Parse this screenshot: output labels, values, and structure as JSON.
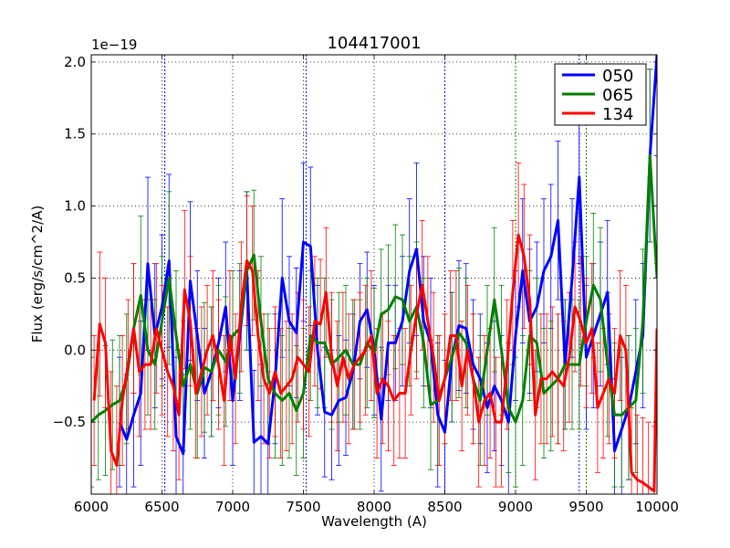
{
  "chart_data": {
    "type": "line",
    "title": "104417001",
    "xlabel": "Wavelength (A)",
    "ylabel": "Flux (erg/s/cm^2/A)",
    "offset_text": "1e−19",
    "xlim": [
      6000,
      10000
    ],
    "ylim": [
      -1.0,
      2.05
    ],
    "grid": true,
    "legend_position": "top-right",
    "x_ticks": [
      6000,
      6500,
      7000,
      7500,
      8000,
      8500,
      9000,
      9500,
      10000
    ],
    "x_tick_labels": [
      "6000",
      "6500",
      "7000",
      "7500",
      "8000",
      "8500",
      "9000",
      "9500",
      "10000"
    ],
    "y_ticks": [
      -0.5,
      0.0,
      0.5,
      1.0,
      1.5,
      2.0
    ],
    "y_tick_labels": [
      "−0.5",
      "0.0",
      "0.5",
      "1.0",
      "1.5",
      "2.0"
    ],
    "vertical_lines": [
      {
        "x": 6520,
        "color": "#0000ff"
      },
      {
        "x": 7520,
        "color": "#0000ff"
      },
      {
        "x": 8500,
        "color": "#0000ff"
      },
      {
        "x": 9000,
        "color": "#008000"
      },
      {
        "x": 9450,
        "color": "#0000ff"
      },
      {
        "x": 9500,
        "color": "#008000"
      }
    ],
    "series": [
      {
        "name": "050",
        "color": "#0000ff",
        "x": [
          6200,
          6250,
          6300,
          6350,
          6400,
          6450,
          6500,
          6550,
          6600,
          6650,
          6700,
          6750,
          6800,
          6850,
          6900,
          6950,
          7000,
          7050,
          7100,
          7150,
          7200,
          7250,
          7300,
          7350,
          7400,
          7450,
          7500,
          7550,
          7600,
          7650,
          7700,
          7750,
          7800,
          7850,
          7900,
          7950,
          8000,
          8050,
          8100,
          8150,
          8200,
          8250,
          8300,
          8350,
          8400,
          8450,
          8500,
          8550,
          8600,
          8650,
          8700,
          8750,
          8800,
          8850,
          8900,
          8950,
          9000,
          9050,
          9100,
          9150,
          9200,
          9250,
          9300,
          9350,
          9400,
          9450,
          9500,
          9550,
          9600,
          9650,
          9700,
          9750,
          9800,
          9850,
          9900,
          9950,
          10000
        ],
        "y": [
          -0.5,
          -0.62,
          -0.45,
          -0.3,
          0.6,
          0.1,
          0.3,
          0.62,
          -0.6,
          -0.72,
          0.48,
          0.1,
          -0.3,
          -0.15,
          0.05,
          0.3,
          -0.35,
          0.1,
          0.55,
          -0.64,
          -0.6,
          -0.65,
          -0.2,
          0.5,
          0.2,
          0.12,
          0.75,
          0.72,
          0.0,
          -0.43,
          -0.45,
          -0.35,
          -0.33,
          -0.15,
          0.2,
          0.28,
          0.0,
          -0.48,
          0.05,
          0.05,
          0.2,
          0.55,
          0.7,
          0.2,
          0.05,
          -0.45,
          -0.57,
          -0.05,
          0.17,
          0.15,
          -0.1,
          -0.2,
          -0.4,
          -0.25,
          -0.35,
          -0.5,
          0.1,
          0.55,
          0.2,
          0.3,
          0.55,
          0.65,
          0.9,
          -0.1,
          0.5,
          1.2,
          -0.05,
          0.1,
          0.25,
          0.4,
          -0.7,
          -0.55,
          -0.4,
          -0.15,
          0.1,
          1.35,
          2.05
        ],
        "err": [
          0.45,
          0.45,
          0.5,
          0.5,
          0.6,
          0.5,
          0.5,
          0.6,
          0.55,
          0.55,
          0.55,
          0.45,
          0.45,
          0.45,
          0.45,
          0.45,
          0.45,
          0.45,
          0.55,
          0.5,
          0.5,
          0.5,
          0.45,
          0.55,
          0.45,
          0.45,
          0.55,
          0.55,
          0.45,
          0.45,
          0.45,
          0.45,
          0.4,
          0.4,
          0.4,
          0.4,
          0.45,
          0.5,
          0.4,
          0.4,
          0.45,
          0.5,
          0.6,
          0.45,
          0.45,
          0.5,
          0.5,
          0.45,
          0.45,
          0.45,
          0.45,
          0.45,
          0.45,
          0.45,
          0.45,
          0.5,
          0.45,
          0.5,
          0.5,
          0.45,
          0.5,
          0.5,
          0.55,
          0.45,
          0.55,
          0.6,
          0.5,
          0.5,
          0.5,
          0.5,
          0.5,
          0.5,
          0.5,
          0.5,
          0.5,
          0.6,
          0.7
        ]
      },
      {
        "name": "065",
        "color": "#008000",
        "x": [
          6000,
          6050,
          6100,
          6150,
          6200,
          6250,
          6300,
          6350,
          6400,
          6450,
          6500,
          6550,
          6600,
          6650,
          6700,
          6750,
          6800,
          6850,
          6900,
          6950,
          7000,
          7050,
          7100,
          7150,
          7200,
          7250,
          7300,
          7350,
          7400,
          7450,
          7500,
          7550,
          7600,
          7650,
          7700,
          7750,
          7800,
          7850,
          7900,
          7950,
          8000,
          8050,
          8100,
          8150,
          8200,
          8250,
          8300,
          8350,
          8400,
          8450,
          8500,
          8550,
          8600,
          8650,
          8700,
          8750,
          8800,
          8850,
          8900,
          8950,
          9000,
          9050,
          9100,
          9150,
          9200,
          9250,
          9300,
          9350,
          9400,
          9450,
          9500,
          9550,
          9600,
          9650,
          9700,
          9750,
          9800,
          9850,
          9900,
          9950,
          10000
        ],
        "y": [
          -0.5,
          -0.45,
          -0.42,
          -0.38,
          -0.35,
          -0.2,
          0.15,
          0.38,
          0.0,
          -0.1,
          0.2,
          0.5,
          0.1,
          -0.25,
          -0.1,
          -0.3,
          -0.12,
          -0.15,
          0.0,
          -0.08,
          0.1,
          0.15,
          0.55,
          0.66,
          0.2,
          -0.2,
          -0.3,
          -0.35,
          -0.3,
          -0.42,
          -0.3,
          0.1,
          0.05,
          0.05,
          -0.1,
          -0.05,
          0.0,
          -0.1,
          -0.1,
          0.05,
          -0.02,
          0.25,
          0.28,
          0.37,
          0.35,
          0.2,
          0.3,
          0.05,
          -0.38,
          -0.35,
          -0.2,
          -0.05,
          0.12,
          0.05,
          -0.2,
          -0.35,
          0.0,
          0.35,
          0.0,
          -0.4,
          -0.5,
          -0.35,
          0.1,
          0.05,
          -0.3,
          -0.25,
          -0.2,
          -0.1,
          -0.1,
          -0.1,
          0.2,
          0.45,
          0.35,
          -0.1,
          -0.45,
          -0.45,
          -0.4,
          -0.35,
          0.2,
          1.35,
          0.5
        ],
        "err": [
          0.45,
          0.45,
          0.45,
          0.45,
          0.45,
          0.45,
          0.45,
          0.55,
          0.45,
          0.45,
          0.45,
          0.6,
          0.45,
          0.45,
          0.45,
          0.45,
          0.45,
          0.45,
          0.45,
          0.45,
          0.45,
          0.45,
          0.55,
          0.45,
          0.45,
          0.45,
          0.45,
          0.45,
          0.45,
          0.45,
          0.45,
          0.45,
          0.45,
          0.45,
          0.45,
          0.45,
          0.45,
          0.45,
          0.45,
          0.45,
          0.45,
          0.45,
          0.45,
          0.5,
          0.45,
          0.45,
          0.45,
          0.45,
          0.45,
          0.45,
          0.45,
          0.45,
          0.45,
          0.45,
          0.45,
          0.45,
          0.45,
          0.5,
          0.45,
          0.45,
          0.45,
          0.45,
          0.45,
          0.45,
          0.45,
          0.45,
          0.45,
          0.45,
          0.45,
          0.45,
          0.45,
          0.5,
          0.5,
          0.5,
          0.5,
          0.5,
          0.5,
          0.5,
          0.5,
          0.6,
          0.5
        ]
      },
      {
        "name": "134",
        "color": "#ff0000",
        "x": [
          6020,
          6060,
          6100,
          6140,
          6180,
          6220,
          6260,
          6300,
          6340,
          6380,
          6420,
          6460,
          6500,
          6540,
          6580,
          6620,
          6660,
          6700,
          6740,
          6780,
          6820,
          6860,
          6900,
          6940,
          6980,
          7020,
          7060,
          7100,
          7140,
          7180,
          7220,
          7260,
          7300,
          7340,
          7380,
          7420,
          7460,
          7500,
          7540,
          7580,
          7620,
          7660,
          7700,
          7740,
          7780,
          7820,
          7860,
          7900,
          7940,
          7980,
          8020,
          8060,
          8100,
          8140,
          8180,
          8220,
          8260,
          8300,
          8340,
          8380,
          8420,
          8460,
          8500,
          8540,
          8580,
          8620,
          8660,
          8700,
          8740,
          8780,
          8820,
          8860,
          8900,
          8940,
          8980,
          9020,
          9060,
          9100,
          9140,
          9180,
          9220,
          9260,
          9300,
          9340,
          9380,
          9420,
          9460,
          9500,
          9540,
          9580,
          9620,
          9660,
          9700,
          9740,
          9780,
          9820,
          9860,
          9900,
          9940,
          9980,
          10000
        ],
        "y": [
          -0.35,
          0.18,
          0.05,
          -0.7,
          -0.8,
          -0.35,
          -0.1,
          0.15,
          -0.15,
          -0.1,
          -0.1,
          0.15,
          0.0,
          -0.15,
          -0.25,
          -0.45,
          0.42,
          0.2,
          -0.3,
          -0.15,
          0.0,
          0.1,
          -0.1,
          -0.35,
          0.1,
          -0.2,
          0.3,
          0.62,
          0.55,
          0.1,
          -0.2,
          -0.3,
          -0.15,
          -0.3,
          -0.25,
          -0.2,
          -0.05,
          -0.1,
          -0.15,
          0.2,
          0.18,
          0.4,
          -0.05,
          -0.25,
          -0.05,
          -0.2,
          -0.1,
          -0.05,
          0.0,
          0.1,
          -0.3,
          -0.2,
          -0.25,
          -0.35,
          -0.3,
          -0.3,
          0.0,
          0.25,
          0.45,
          0.2,
          -0.05,
          -0.35,
          -0.2,
          0.1,
          0.1,
          -0.25,
          0.0,
          -0.2,
          -0.5,
          -0.35,
          -0.3,
          -0.5,
          -0.5,
          -0.1,
          0.4,
          0.8,
          0.65,
          0.35,
          -0.45,
          -0.2,
          -0.2,
          -0.15,
          -0.2,
          -0.25,
          -0.05,
          0.3,
          0.2,
          0.05,
          0.15,
          -0.4,
          -0.3,
          -0.2,
          -0.3,
          0.1,
          0.0,
          -0.85,
          -0.9,
          -0.92,
          -0.95,
          -0.98,
          0.15
        ],
        "err": [
          0.45,
          0.5,
          0.45,
          0.55,
          0.55,
          0.45,
          0.45,
          0.45,
          0.45,
          0.45,
          0.45,
          0.45,
          0.45,
          0.45,
          0.45,
          0.45,
          0.55,
          0.45,
          0.45,
          0.45,
          0.45,
          0.45,
          0.45,
          0.45,
          0.45,
          0.45,
          0.45,
          0.45,
          0.45,
          0.45,
          0.45,
          0.45,
          0.45,
          0.45,
          0.45,
          0.45,
          0.45,
          0.45,
          0.45,
          0.45,
          0.45,
          0.45,
          0.45,
          0.45,
          0.45,
          0.45,
          0.45,
          0.45,
          0.45,
          0.45,
          0.45,
          0.45,
          0.45,
          0.45,
          0.45,
          0.45,
          0.45,
          0.45,
          0.45,
          0.45,
          0.45,
          0.45,
          0.45,
          0.45,
          0.45,
          0.45,
          0.45,
          0.45,
          0.45,
          0.45,
          0.45,
          0.45,
          0.45,
          0.45,
          0.5,
          0.5,
          0.5,
          0.45,
          0.45,
          0.45,
          0.45,
          0.45,
          0.45,
          0.45,
          0.45,
          0.45,
          0.45,
          0.45,
          0.45,
          0.45,
          0.45,
          0.45,
          0.45,
          0.45,
          0.45,
          0.45,
          0.45,
          0.45,
          0.45,
          0.45,
          0.45
        ]
      }
    ]
  }
}
